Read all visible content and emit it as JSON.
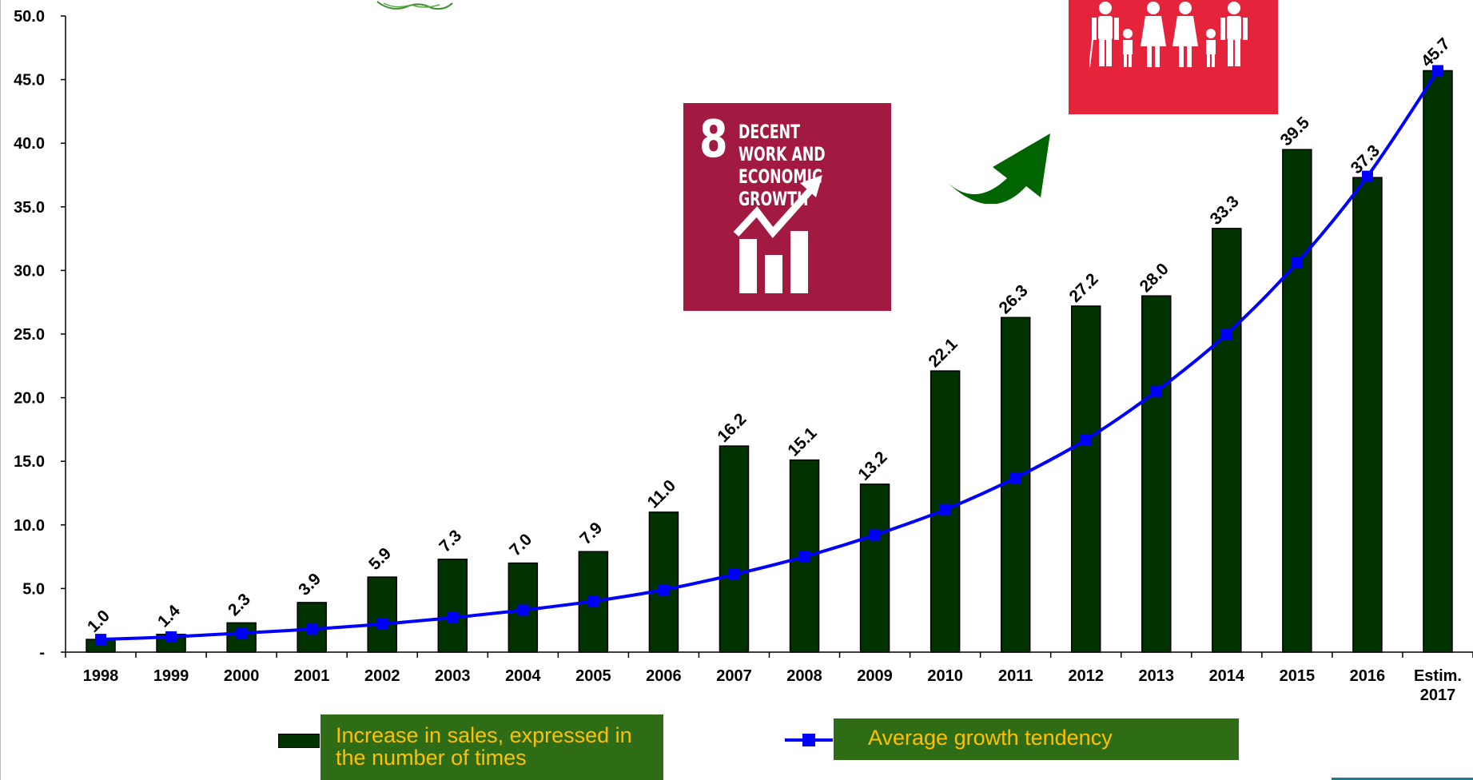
{
  "chart_data": {
    "type": "bar",
    "categories": [
      "1998",
      "1999",
      "2000",
      "2001",
      "2002",
      "2003",
      "2004",
      "2005",
      "2006",
      "2007",
      "2008",
      "2009",
      "2010",
      "2011",
      "2012",
      "2013",
      "2014",
      "2015",
      "2016",
      "Estim. 2017"
    ],
    "series": [
      {
        "name": "Increase in sales, expressed in the number of times",
        "type": "bar",
        "color": "#003300",
        "values": [
          1.0,
          1.4,
          2.3,
          3.9,
          5.9,
          7.3,
          7.0,
          7.9,
          11.0,
          16.2,
          15.1,
          13.2,
          22.1,
          26.3,
          27.2,
          28.0,
          33.3,
          39.5,
          37.3,
          45.7
        ],
        "labels": [
          "1.0",
          "1.4",
          "2.3",
          "3.9",
          "5.9",
          "7.3",
          "7.0",
          "7.9",
          "11.0",
          "16.2",
          "15.1",
          "13.2",
          "22.1",
          "26.3",
          "27.2",
          "28.0",
          "33.3",
          "39.5",
          "37.3",
          "45.7"
        ]
      },
      {
        "name": "Average growth tendency",
        "type": "line",
        "color": "#0000ff",
        "values": [
          1.0,
          1.2,
          1.5,
          1.8,
          2.2,
          2.7,
          3.3,
          4.0,
          4.9,
          6.1,
          7.5,
          9.2,
          11.2,
          13.7,
          16.7,
          20.5,
          25.0,
          30.6,
          37.4,
          45.7
        ]
      }
    ],
    "ylim": [
      0,
      50
    ],
    "yticks": [
      "-",
      "5.0",
      "10.0",
      "15.0",
      "20.0",
      "25.0",
      "30.0",
      "35.0",
      "40.0",
      "45.0",
      "50.0"
    ],
    "xticks": [
      [
        "1998"
      ],
      [
        "1999"
      ],
      [
        "2000"
      ],
      [
        "2001"
      ],
      [
        "2002"
      ],
      [
        "2003"
      ],
      [
        "2004"
      ],
      [
        "2005"
      ],
      [
        "2006"
      ],
      [
        "2007"
      ],
      [
        "2008"
      ],
      [
        "2009"
      ],
      [
        "2010"
      ],
      [
        "2011"
      ],
      [
        "2012"
      ],
      [
        "2013"
      ],
      [
        "2014"
      ],
      [
        "2015"
      ],
      [
        "2016"
      ],
      [
        "Estim.",
        "2017"
      ]
    ],
    "grid": false,
    "legend_position": "bottom"
  },
  "legend": {
    "bar_label": "Increase in sales, expressed in the number of times",
    "line_label": "Average growth tendency"
  },
  "badges": {
    "sdg8_number": "8",
    "sdg8_title": "DECENT WORK AND\nECONOMIC GROWTH"
  },
  "colors": {
    "sdg8": "#a21942",
    "sdg_red": "#e5243b",
    "arrow": "#006400",
    "legend_bg": "#2e6d16",
    "legend_text": "#ffc000"
  }
}
